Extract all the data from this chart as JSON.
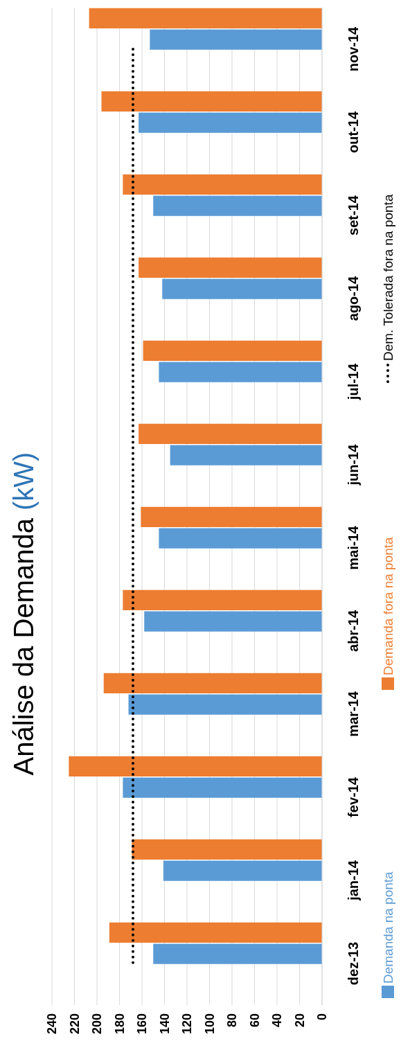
{
  "chart_data": {
    "type": "bar",
    "orientation": "horizontal",
    "title": "Análise da Demanda (kW)",
    "categories": [
      "nov-14",
      "out-14",
      "set-14",
      "ago-14",
      "jul-14",
      "jun-14",
      "mai-14",
      "abr-14",
      "mar-14",
      "fev-14",
      "jan-14",
      "dez-13"
    ],
    "series": [
      {
        "name": "Demanda na ponta",
        "color": "#5b9bd5",
        "values": [
          153,
          163,
          150,
          142,
          145,
          135,
          145,
          158,
          172,
          177,
          141,
          150
        ]
      },
      {
        "name": "Demanda fora na ponta",
        "color": "#ed7d31",
        "values": [
          207,
          196,
          177,
          163,
          159,
          163,
          161,
          177,
          194,
          225,
          169,
          189
        ]
      },
      {
        "name": "Dem. Tolerada fora na ponta",
        "type": "line",
        "color": "#000000",
        "line_style": "dotted",
        "marker": "none",
        "values": [
          168,
          168,
          168,
          168,
          168,
          168,
          168,
          168,
          168,
          168,
          168,
          168
        ]
      }
    ],
    "xlim": [
      240,
      0
    ],
    "xticks": [
      240,
      220,
      200,
      180,
      160,
      140,
      120,
      100,
      80,
      60,
      40,
      20,
      0
    ],
    "grid": "x",
    "legend": "right"
  }
}
